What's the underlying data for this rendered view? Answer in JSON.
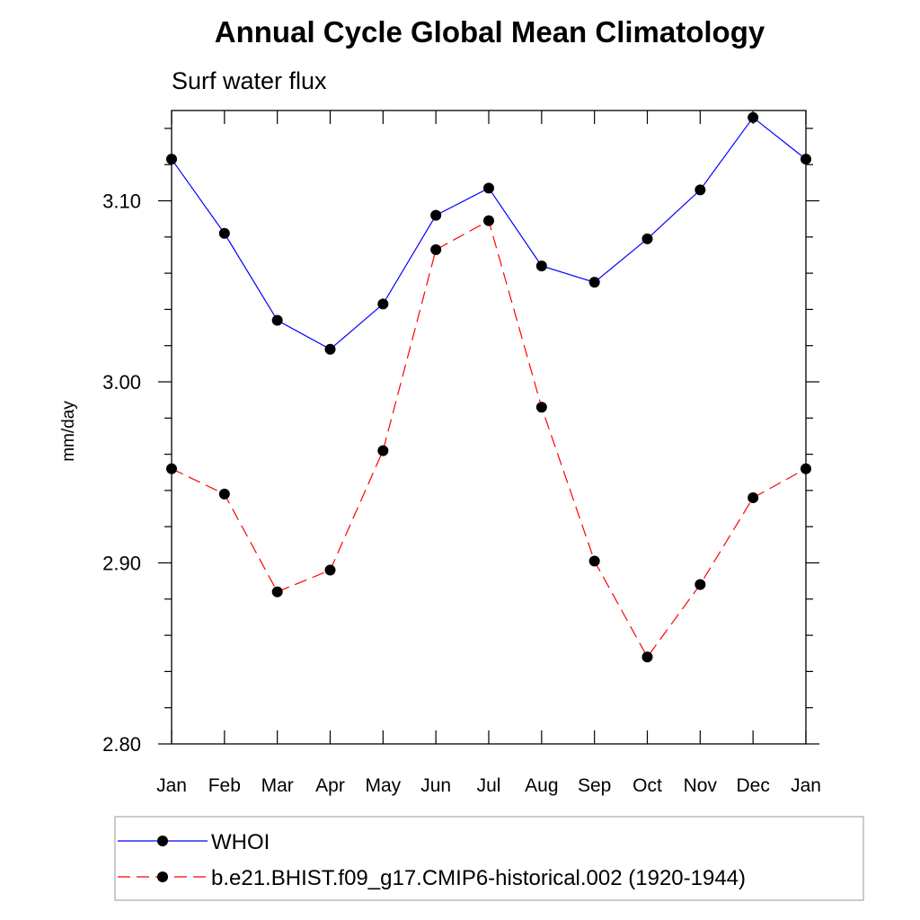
{
  "chart_data": {
    "type": "line",
    "title": "Annual Cycle Global Mean Climatology",
    "subtitle": "Surf water flux",
    "xlabel": "",
    "ylabel": "mm/day",
    "categories": [
      "Jan",
      "Feb",
      "Mar",
      "Apr",
      "May",
      "Jun",
      "Jul",
      "Aug",
      "Sep",
      "Oct",
      "Nov",
      "Dec",
      "Jan"
    ],
    "ylim": [
      2.8,
      3.15
    ],
    "yticks": [
      "2.80",
      "2.90",
      "3.00",
      "3.10"
    ],
    "grid": false,
    "legend_position": "bottom",
    "series": [
      {
        "name": "WHOI",
        "color": "#0000ff",
        "dash": "solid",
        "values": [
          3.123,
          3.082,
          3.034,
          3.018,
          3.043,
          3.092,
          3.107,
          3.064,
          3.055,
          3.079,
          3.106,
          3.146,
          3.123
        ]
      },
      {
        "name": "b.e21.BHIST.f09_g17.CMIP6-historical.002 (1920-1944)",
        "color": "#ff0000",
        "dash": "dashed",
        "values": [
          2.952,
          2.938,
          2.884,
          2.896,
          2.962,
          3.073,
          3.089,
          2.986,
          2.901,
          2.848,
          2.888,
          2.936,
          2.952
        ]
      }
    ]
  }
}
